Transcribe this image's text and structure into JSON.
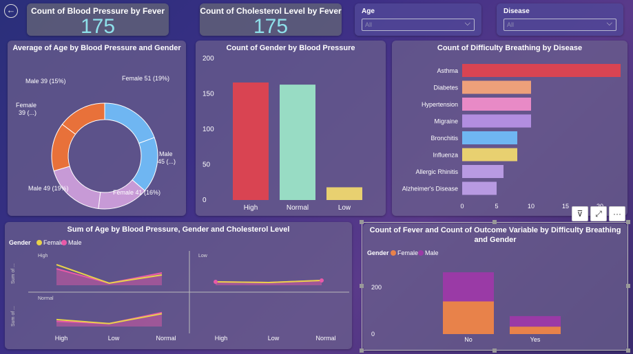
{
  "nav": {
    "back_icon": "back-arrow-icon",
    "back_glyph": "←"
  },
  "kpis": [
    {
      "title": "Count of Blood Pressure by Fever",
      "value": "175"
    },
    {
      "title": "Count of Cholesterol Level by Fever",
      "value": "175"
    }
  ],
  "slicers": [
    {
      "label": "Age",
      "value": "All",
      "chevron": "⌵"
    },
    {
      "label": "Disease",
      "value": "All",
      "chevron": "⌵"
    }
  ],
  "toolbar": {
    "filter_glyph": "⊽",
    "focus_glyph": "⤢",
    "more_glyph": "···"
  },
  "colors": {
    "female": "#e8824a",
    "male": "#a06cd5",
    "pink": "#e85aa8",
    "yellow": "#e8d24a",
    "red": "#d94452",
    "mint": "#98dcc4"
  },
  "chart_data": [
    {
      "type": "pie",
      "title": "Average of Age by Blood Pressure and Gender",
      "slices": [
        {
          "label": "Female 51 (19%)",
          "value": 51,
          "color": "#6fb6f2"
        },
        {
          "label": "Male 45 (...)",
          "value": 45,
          "color": "#6fb6f2"
        },
        {
          "label": "Female 41 (16%)",
          "value": 41,
          "color": "#c79ad6"
        },
        {
          "label": "Male 49 (19%)",
          "value": 49,
          "color": "#c79ad6"
        },
        {
          "label": "Female 39 (...)",
          "value": 39,
          "color": "#e8713a"
        },
        {
          "label": "Male 39 (15%)",
          "value": 39,
          "color": "#e8713a"
        }
      ]
    },
    {
      "type": "bar",
      "title": "Count of Gender by Blood Pressure",
      "categories": [
        "High",
        "Normal",
        "Low"
      ],
      "values": [
        166,
        163,
        18
      ],
      "colors": [
        "#d94452",
        "#98dcc4",
        "#e8d070"
      ],
      "ylim": [
        0,
        200
      ],
      "yticks": [
        0,
        50,
        100,
        150,
        200
      ]
    },
    {
      "type": "bar",
      "orientation": "horizontal",
      "title": "Count of Difficulty Breathing by Disease",
      "categories": [
        "Asthma",
        "Diabetes",
        "Hypertension",
        "Migraine",
        "Bronchitis",
        "Influenza",
        "Allergic Rhinitis",
        "Alzheimer's Disease"
      ],
      "values": [
        23,
        10,
        10,
        10,
        8,
        8,
        6,
        5
      ],
      "colors": [
        "#d94452",
        "#eda07a",
        "#e88ac6",
        "#b28ee0",
        "#6fb6f2",
        "#e8d070",
        "#b89ae2",
        "#b89ae2"
      ],
      "xlim": [
        0,
        23
      ],
      "xticks": [
        0,
        5,
        10,
        15,
        20
      ]
    },
    {
      "type": "line",
      "title": "Sum of Age by Blood Pressure, Gender and Cholesterol Level",
      "legend_title": "Gender",
      "legend": [
        "Female",
        "Male"
      ],
      "series_colors": [
        "#e8d24a",
        "#e85aa8"
      ],
      "categories": [
        "High",
        "Low",
        "Normal"
      ],
      "ylabel": "Sum of ...",
      "panels": [
        {
          "cholesterol": "High",
          "bp": "High",
          "female": [
            3,
            0.3,
            1.5
          ],
          "male": [
            2.4,
            0.3,
            1.8
          ]
        },
        {
          "cholesterol": "High",
          "bp": "Low",
          "female": [
            0.5,
            0.4,
            0.7
          ],
          "male": [
            0.5,
            0.4,
            0.7
          ]
        },
        {
          "cholesterol": "Normal",
          "bp": "High",
          "female": [
            1.2,
            0.5,
            2.2
          ],
          "male": [
            0.9,
            0.5,
            2.4
          ]
        }
      ],
      "row_labels": [
        "High",
        "Normal"
      ],
      "col_labels": [
        "",
        "Low"
      ]
    },
    {
      "type": "bar",
      "stacked": true,
      "title": "Count of Fever and Count of Outcome Variable by Difficulty Breathing and Gender",
      "legend_title": "Gender",
      "categories": [
        "No",
        "Yes"
      ],
      "series": [
        {
          "name": "Female",
          "values": [
            140,
            32
          ],
          "color": "#e8824a"
        },
        {
          "name": "Male",
          "values": [
            125,
            45
          ],
          "color": "#9a3aa6"
        }
      ],
      "ylim": [
        0,
        280
      ],
      "yticks": [
        0,
        200
      ]
    }
  ]
}
